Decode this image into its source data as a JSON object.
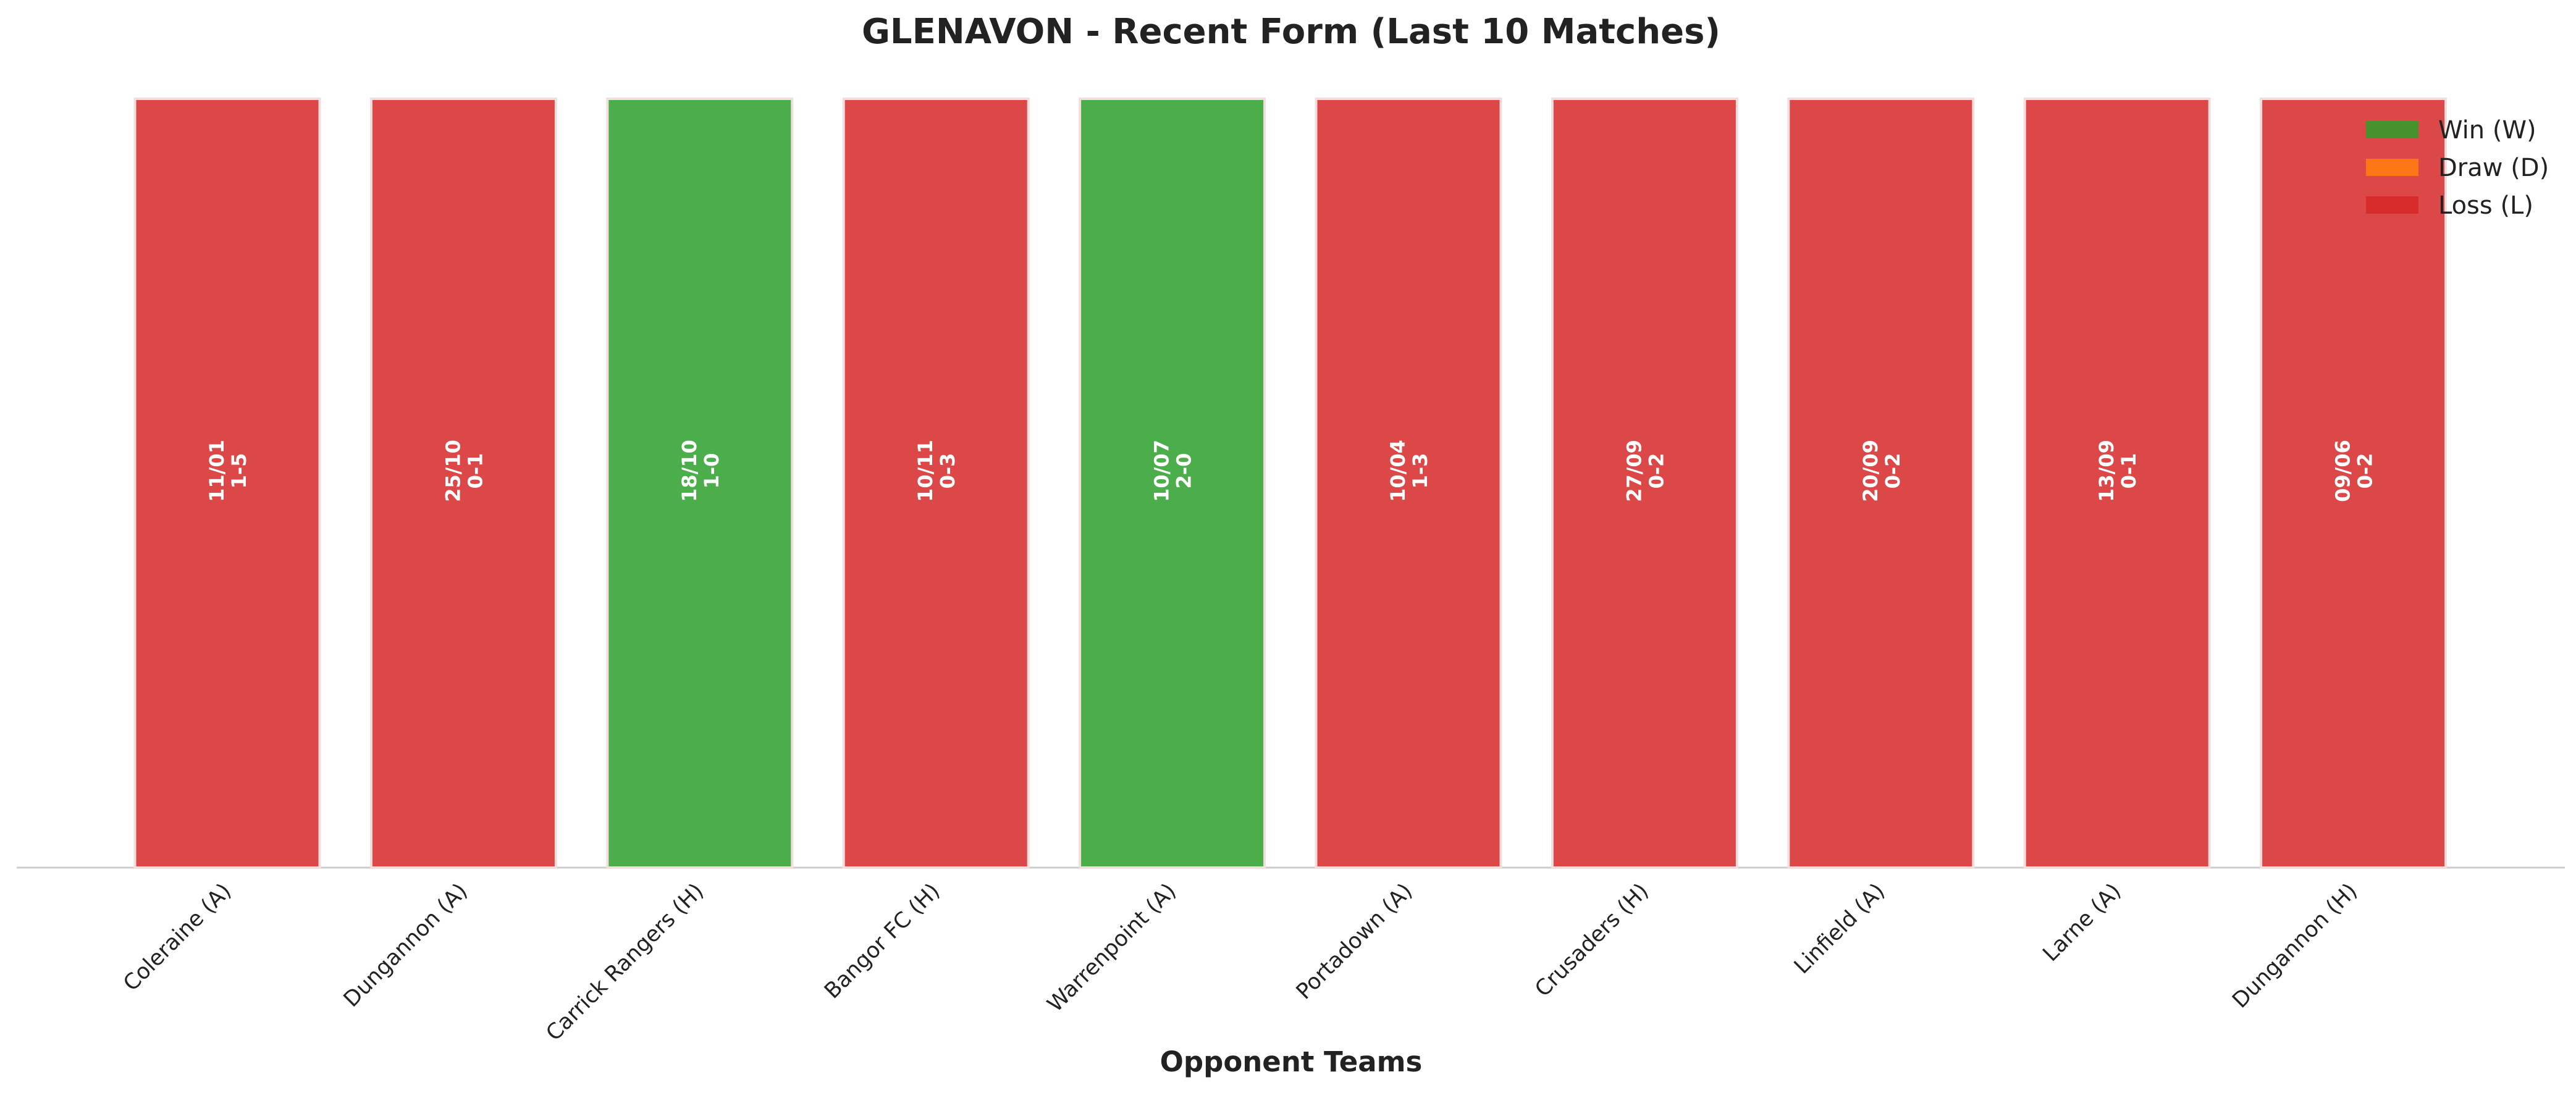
{
  "chart_data": {
    "type": "bar",
    "title": "GLENAVON - Recent Form (Last 10 Matches)",
    "x_label": "Opponent Teams",
    "categories": [
      "Coleraine (A)",
      "Dungannon (A)",
      "Carrick Rangers (H)",
      "Bangor FC (H)",
      "Warrenpoint (A)",
      "Portadown (A)",
      "Crusaders (H)",
      "Linfield (A)",
      "Larne (A)",
      "Dungannon (H)"
    ],
    "dates": [
      "11/01",
      "25/10",
      "18/10",
      "10/11",
      "10/07",
      "10/04",
      "27/09",
      "20/09",
      "13/09",
      "09/06"
    ],
    "scores": [
      "1-5",
      "0-1",
      "1-0",
      "0-3",
      "2-0",
      "1-3",
      "0-2",
      "0-2",
      "0-1",
      "0-2"
    ],
    "series": [
      {
        "name": "Win (W)",
        "color": "#2ca02c",
        "values": [
          null,
          null,
          1,
          null,
          1,
          null,
          null,
          null,
          null,
          null
        ]
      },
      {
        "name": "Draw (D)",
        "color": "#ff7f0e",
        "values": [
          null,
          null,
          null,
          null,
          null,
          null,
          null,
          null,
          null,
          null
        ]
      },
      {
        "name": "Loss (L)",
        "color": "#d62728",
        "values": [
          1,
          1,
          null,
          1,
          null,
          1,
          1,
          1,
          1,
          1
        ]
      }
    ],
    "ylim": [
      0,
      1
    ],
    "legend": "upper right"
  }
}
